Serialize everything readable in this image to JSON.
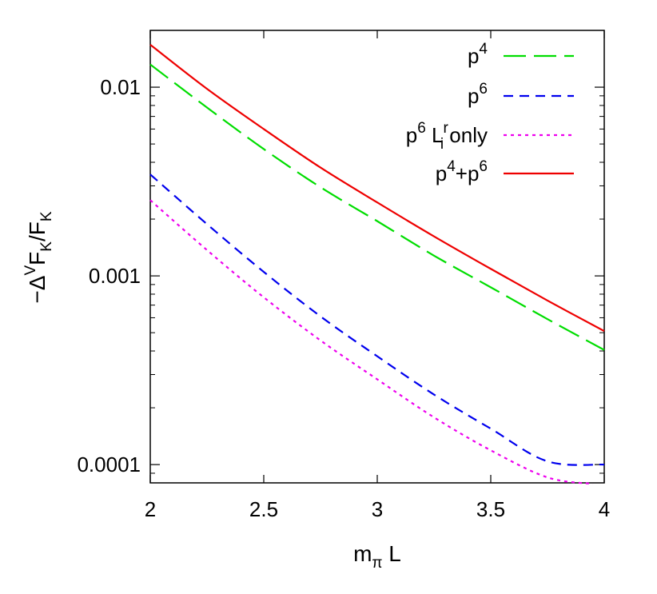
{
  "chart_data": {
    "type": "line",
    "xlabel": {
      "main": "m",
      "sub": "π",
      "tail": " L"
    },
    "ylabel": {
      "prefix": "−Δ",
      "sup": "V",
      "f1": "F",
      "sub1": "K",
      "slash": "/F",
      "sub2": "K"
    },
    "xlim": [
      2,
      4
    ],
    "ylim": [
      8e-05,
      0.02
    ],
    "y_scale": "log",
    "x_ticks": [
      {
        "value": 2,
        "label": "2"
      },
      {
        "value": 2.5,
        "label": "2.5"
      },
      {
        "value": 3,
        "label": "3"
      },
      {
        "value": 3.5,
        "label": "3.5"
      },
      {
        "value": 4,
        "label": "4"
      }
    ],
    "y_ticks": [
      {
        "value": 0.0001,
        "label": "0.0001"
      },
      {
        "value": 0.001,
        "label": "0.001"
      },
      {
        "value": 0.01,
        "label": "0.01"
      }
    ],
    "legend_position": "top-right",
    "series": [
      {
        "id": "p4",
        "legend": {
          "base": "p",
          "sup": "4",
          "mid": "",
          "sup2": "",
          "tail": ""
        },
        "color": "#00dd00",
        "dash": "28,10",
        "x": [
          2.0,
          2.25,
          2.5,
          2.75,
          3.0,
          3.25,
          3.5,
          3.75,
          4.0
        ],
        "y": [
          0.0132,
          0.0078,
          0.0047,
          0.00295,
          0.00195,
          0.00128,
          0.00087,
          0.00059,
          0.000405
        ]
      },
      {
        "id": "p6",
        "legend": {
          "base": "p",
          "sup": "6",
          "mid": "",
          "sup2": "",
          "tail": ""
        },
        "color": "#0000ee",
        "dash": "12,8",
        "x": [
          2.0,
          2.25,
          2.5,
          2.75,
          3.0,
          3.25,
          3.5,
          3.75,
          4.0
        ],
        "y": [
          0.00345,
          0.00188,
          0.00105,
          0.00061,
          0.000375,
          0.000235,
          0.000155,
          0.000104,
          0.0001
        ]
      },
      {
        "id": "p6-lr",
        "legend": {
          "base": "p",
          "sup": "6",
          "mid": " L",
          "sup2": "r",
          "subi": "i",
          "tail": " only"
        },
        "color": "#ee00ee",
        "dash": "4,5",
        "x": [
          2.0,
          2.25,
          2.5,
          2.75,
          3.0,
          3.25,
          3.5,
          3.75,
          3.95
        ],
        "y": [
          0.00252,
          0.00137,
          0.00077,
          0.000455,
          0.000283,
          0.000178,
          0.000119,
          8.55e-05,
          7.9e-05
        ]
      },
      {
        "id": "p4p6",
        "legend": {
          "base": "p",
          "sup": "4",
          "mid": "+p",
          "sup2": "6",
          "tail": ""
        },
        "color": "#ee0000",
        "dash": "",
        "x": [
          2.0,
          2.25,
          2.5,
          2.75,
          3.0,
          3.25,
          3.5,
          3.75,
          4.0
        ],
        "y": [
          0.0168,
          0.0098,
          0.006,
          0.00375,
          0.00245,
          0.00162,
          0.00109,
          0.00074,
          0.00051
        ]
      }
    ]
  }
}
